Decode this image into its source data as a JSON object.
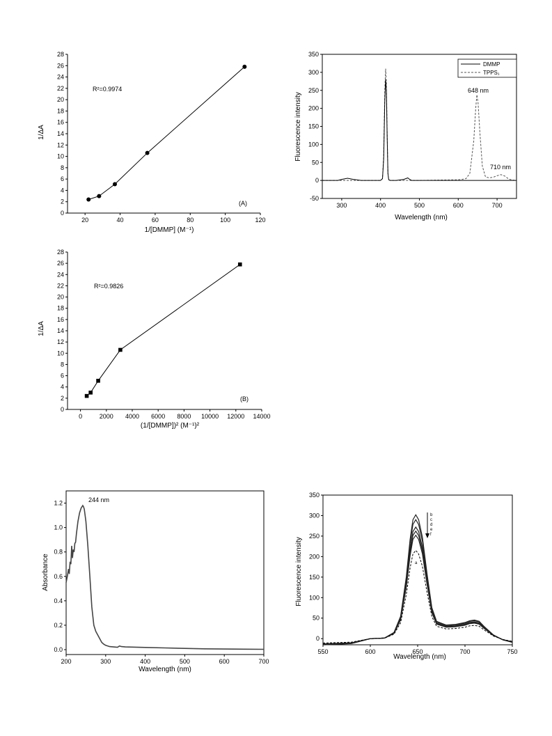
{
  "chart_data": [
    {
      "id": "A",
      "type": "scatter",
      "panel_label": "(A)",
      "annotation": "R²=0.9974",
      "xlabel": "1/[DMMP] (M⁻¹)",
      "ylabel": "1/ΔA",
      "xlim": [
        10,
        120
      ],
      "ylim": [
        0,
        28
      ],
      "xticks": [
        20,
        40,
        60,
        80,
        100,
        120
      ],
      "yticks": [
        0,
        2,
        4,
        6,
        8,
        10,
        12,
        14,
        16,
        18,
        20,
        22,
        24,
        26,
        28
      ],
      "marker": "circle",
      "connected": true,
      "x": [
        22,
        28,
        37,
        55.5,
        111
      ],
      "y": [
        2.4,
        3.0,
        5.1,
        10.6,
        25.8
      ]
    },
    {
      "id": "B",
      "type": "scatter",
      "panel_label": "(B)",
      "annotation": "R²=0.9826",
      "xlabel": "(1/[DMMP])² (M⁻¹)²",
      "ylabel": "1/ΔA",
      "xlim": [
        -1000,
        14000
      ],
      "ylim": [
        0,
        28
      ],
      "xticks": [
        0,
        2000,
        4000,
        6000,
        8000,
        10000,
        12000,
        14000
      ],
      "yticks": [
        0,
        2,
        4,
        6,
        8,
        10,
        12,
        14,
        16,
        18,
        20,
        22,
        24,
        26,
        28
      ],
      "marker": "square",
      "connected": true,
      "x": [
        484,
        784,
        1369,
        3080,
        12321
      ],
      "y": [
        2.4,
        3.0,
        5.1,
        10.6,
        25.8
      ]
    },
    {
      "id": "C",
      "type": "line",
      "xlabel": "Wavelength (nm)",
      "ylabel": "Fluorescence intensity",
      "xlim": [
        250,
        750
      ],
      "ylim": [
        -50,
        350
      ],
      "xticks": [
        300,
        400,
        500,
        600,
        700
      ],
      "yticks": [
        -50,
        0,
        50,
        100,
        150,
        200,
        250,
        300,
        350
      ],
      "legend_position": "top-right",
      "annotations": [
        "648 nm",
        "710 nm"
      ],
      "series": [
        {
          "name": "DMMP",
          "style": "solid",
          "x": [
            250,
            290,
            300,
            315,
            330,
            350,
            380,
            400,
            405,
            408,
            411,
            413,
            415,
            417,
            419,
            421,
            425,
            440,
            460,
            470,
            475,
            480,
            500,
            600,
            700,
            740,
            750
          ],
          "y": [
            0,
            0,
            3,
            6,
            3,
            0,
            0,
            0,
            5,
            60,
            220,
            280,
            250,
            120,
            20,
            2,
            0,
            0,
            3,
            7,
            3,
            0,
            0,
            0,
            0,
            0,
            0
          ]
        },
        {
          "name": "TPPS₁",
          "style": "dashed",
          "x": [
            250,
            300,
            400,
            405,
            408,
            411,
            413,
            415,
            417,
            419,
            421,
            425,
            500,
            600,
            610,
            620,
            630,
            640,
            645,
            648,
            651,
            656,
            662,
            670,
            680,
            690,
            700,
            710,
            720,
            730,
            740,
            750
          ],
          "y": [
            0,
            0,
            0,
            5,
            70,
            250,
            310,
            270,
            130,
            20,
            2,
            0,
            0,
            2,
            3,
            5,
            20,
            110,
            200,
            238,
            215,
            130,
            40,
            10,
            7,
            9,
            13,
            16,
            12,
            4,
            1,
            0
          ]
        }
      ]
    },
    {
      "id": "D",
      "type": "line",
      "xlabel": "Wavelength (nm)",
      "ylabel": "Absorbance",
      "xlim": [
        200,
        700
      ],
      "ylim": [
        -0.04,
        1.3
      ],
      "xticks": [
        200,
        300,
        400,
        500,
        600,
        700
      ],
      "yticks": [
        0.0,
        0.2,
        0.4,
        0.6,
        0.8,
        1.0,
        1.2
      ],
      "annotations": [
        "244 nm"
      ],
      "series": [
        {
          "name": "",
          "style": "solid",
          "x": [
            200,
            203,
            206,
            208,
            210,
            212,
            214,
            216,
            218,
            220,
            222,
            224,
            226,
            228,
            230,
            234,
            238,
            242,
            244,
            246,
            250,
            255,
            260,
            265,
            270,
            275,
            280,
            285,
            290,
            295,
            300,
            310,
            320,
            330,
            335,
            340,
            350,
            400,
            450,
            500,
            550,
            600,
            650,
            700
          ],
          "y": [
            0.55,
            0.6,
            0.66,
            0.62,
            0.72,
            0.7,
            0.85,
            0.75,
            0.82,
            0.8,
            0.87,
            0.88,
            0.95,
            1.0,
            1.05,
            1.12,
            1.16,
            1.18,
            1.17,
            1.15,
            1.05,
            0.85,
            0.6,
            0.35,
            0.2,
            0.15,
            0.12,
            0.09,
            0.06,
            0.045,
            0.035,
            0.025,
            0.022,
            0.02,
            0.03,
            0.025,
            0.022,
            0.018,
            0.014,
            0.01,
            0.007,
            0.005,
            0.004,
            0.003
          ]
        }
      ]
    },
    {
      "id": "E",
      "type": "line",
      "xlabel": "Wavelength (nm)",
      "ylabel": "Fluorescence intensity",
      "xlim": [
        550,
        750
      ],
      "ylim": [
        -15,
        350
      ],
      "xticks": [
        550,
        600,
        650,
        700,
        750
      ],
      "yticks": [
        0,
        50,
        100,
        150,
        200,
        250,
        300,
        350
      ],
      "curve_labels": [
        "b",
        "c",
        "d",
        "e",
        "f",
        "a"
      ],
      "series": [
        {
          "name": "b",
          "style": "solid",
          "peak": 302
        },
        {
          "name": "c",
          "style": "solid",
          "peak": 290
        },
        {
          "name": "d",
          "style": "solid",
          "peak": 272
        },
        {
          "name": "e",
          "style": "solid",
          "peak": 262
        },
        {
          "name": "f",
          "style": "solid",
          "peak": 252
        },
        {
          "name": "a",
          "style": "dashed",
          "peak": 215
        }
      ],
      "shape": {
        "x": [
          550,
          580,
          600,
          615,
          625,
          632,
          638,
          642,
          645,
          648,
          651,
          655,
          660,
          665,
          670,
          680,
          690,
          700,
          705,
          710,
          715,
          720,
          730,
          740,
          750
        ],
        "y": [
          -5,
          -4,
          0,
          0.5,
          5,
          18,
          50,
          80,
          96,
          100,
          96,
          82,
          52,
          25,
          14,
          11,
          11.5,
          13,
          14.5,
          15,
          14,
          10,
          3,
          -1,
          -3
        ]
      }
    }
  ]
}
